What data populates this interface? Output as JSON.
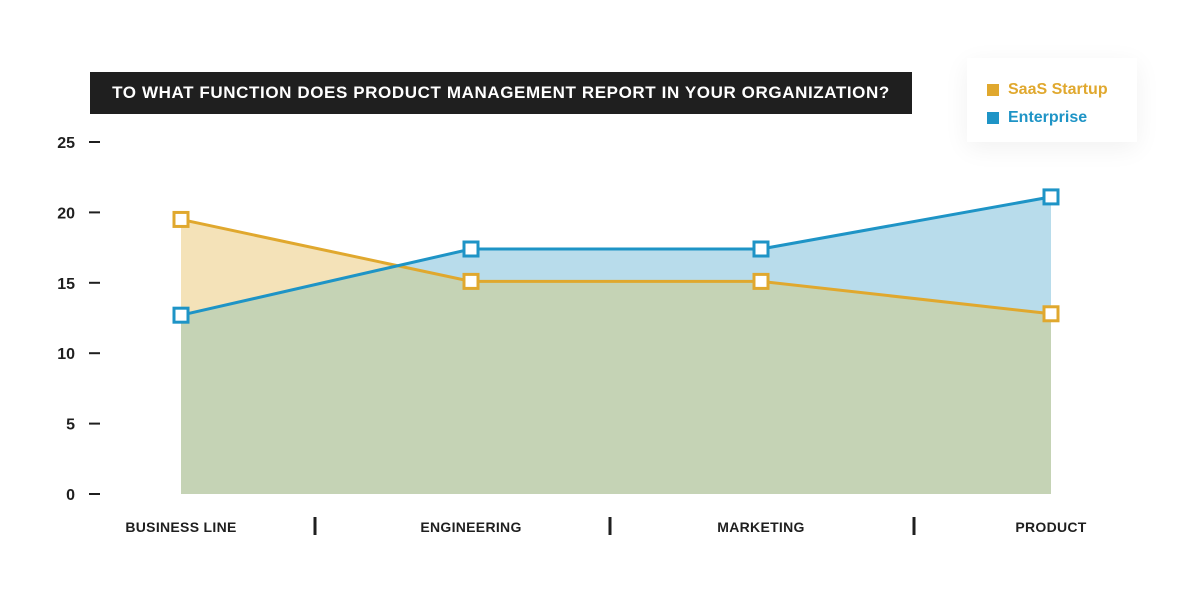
{
  "chart_data": {
    "type": "area",
    "title": "TO WHAT FUNCTION DOES PRODUCT MANAGEMENT REPORT IN YOUR ORGANIZATION?",
    "categories": [
      "BUSINESS LINE",
      "ENGINEERING",
      "MARKETING",
      "PRODUCT"
    ],
    "ylim": [
      0,
      25
    ],
    "yticks": [
      0,
      5,
      10,
      15,
      20,
      25
    ],
    "legend_position": "top-right",
    "grid": false,
    "series": [
      {
        "name": "SaaS Startup",
        "values": [
          19.5,
          15.1,
          15.1,
          12.8
        ],
        "color": "#e0a82e",
        "fill": "#f4e2b8"
      },
      {
        "name": "Enterprise",
        "values": [
          12.7,
          17.4,
          17.4,
          21.1
        ],
        "color": "#1e94c6",
        "fill": "#b8dceb"
      }
    ],
    "overlap_fill": "#c5d3b5"
  }
}
